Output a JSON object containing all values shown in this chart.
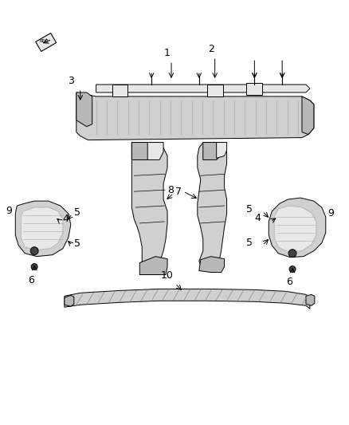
{
  "background_color": "#ffffff",
  "fig_width": 4.38,
  "fig_height": 5.33,
  "dpi": 100,
  "line_color": "#000000",
  "face_light": "#e8e8e8",
  "face_mid": "#d0d0d0",
  "face_dark": "#b8b8b8",
  "bolt_color": "#444444"
}
